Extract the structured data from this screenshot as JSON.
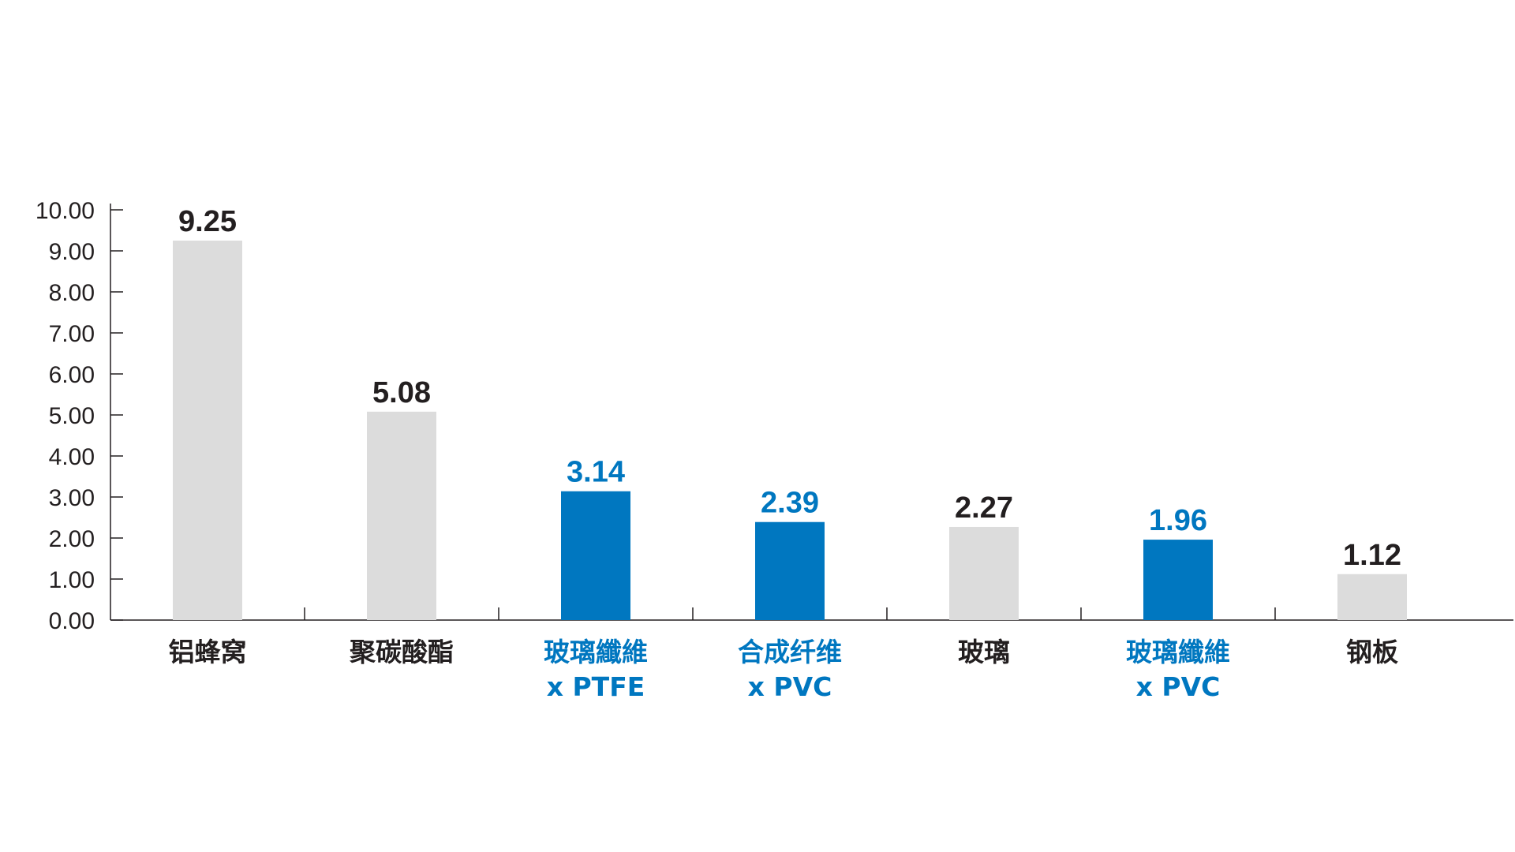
{
  "chart_data": {
    "type": "bar",
    "categories": [
      [
        "铝蜂窝"
      ],
      [
        "聚碳酸酯"
      ],
      [
        "玻璃纖維",
        "x PTFE"
      ],
      [
        "合成纤维",
        "x PVC"
      ],
      [
        "玻璃"
      ],
      [
        "玻璃纖維",
        "x PVC"
      ],
      [
        "钢板"
      ]
    ],
    "values": [
      9.25,
      5.08,
      3.14,
      2.39,
      2.27,
      1.96,
      1.12
    ],
    "value_labels": [
      "9.25",
      "5.08",
      "3.14",
      "2.39",
      "2.27",
      "1.96",
      "1.12"
    ],
    "highlighted": [
      false,
      false,
      true,
      true,
      false,
      true,
      false
    ],
    "y_ticks": [
      "0.00",
      "1.00",
      "2.00",
      "3.00",
      "4.00",
      "5.00",
      "6.00",
      "7.00",
      "8.00",
      "9.00",
      "10.00"
    ],
    "ylim": [
      0,
      10
    ],
    "title": "",
    "xlabel": "",
    "ylabel": "",
    "grid": false,
    "legend": "none",
    "colors": {
      "bar_default": "#dcdcdc",
      "bar_highlight": "#0077c0",
      "text_default": "#231f20",
      "text_highlight": "#0077c0",
      "axis": "#231f20"
    }
  }
}
